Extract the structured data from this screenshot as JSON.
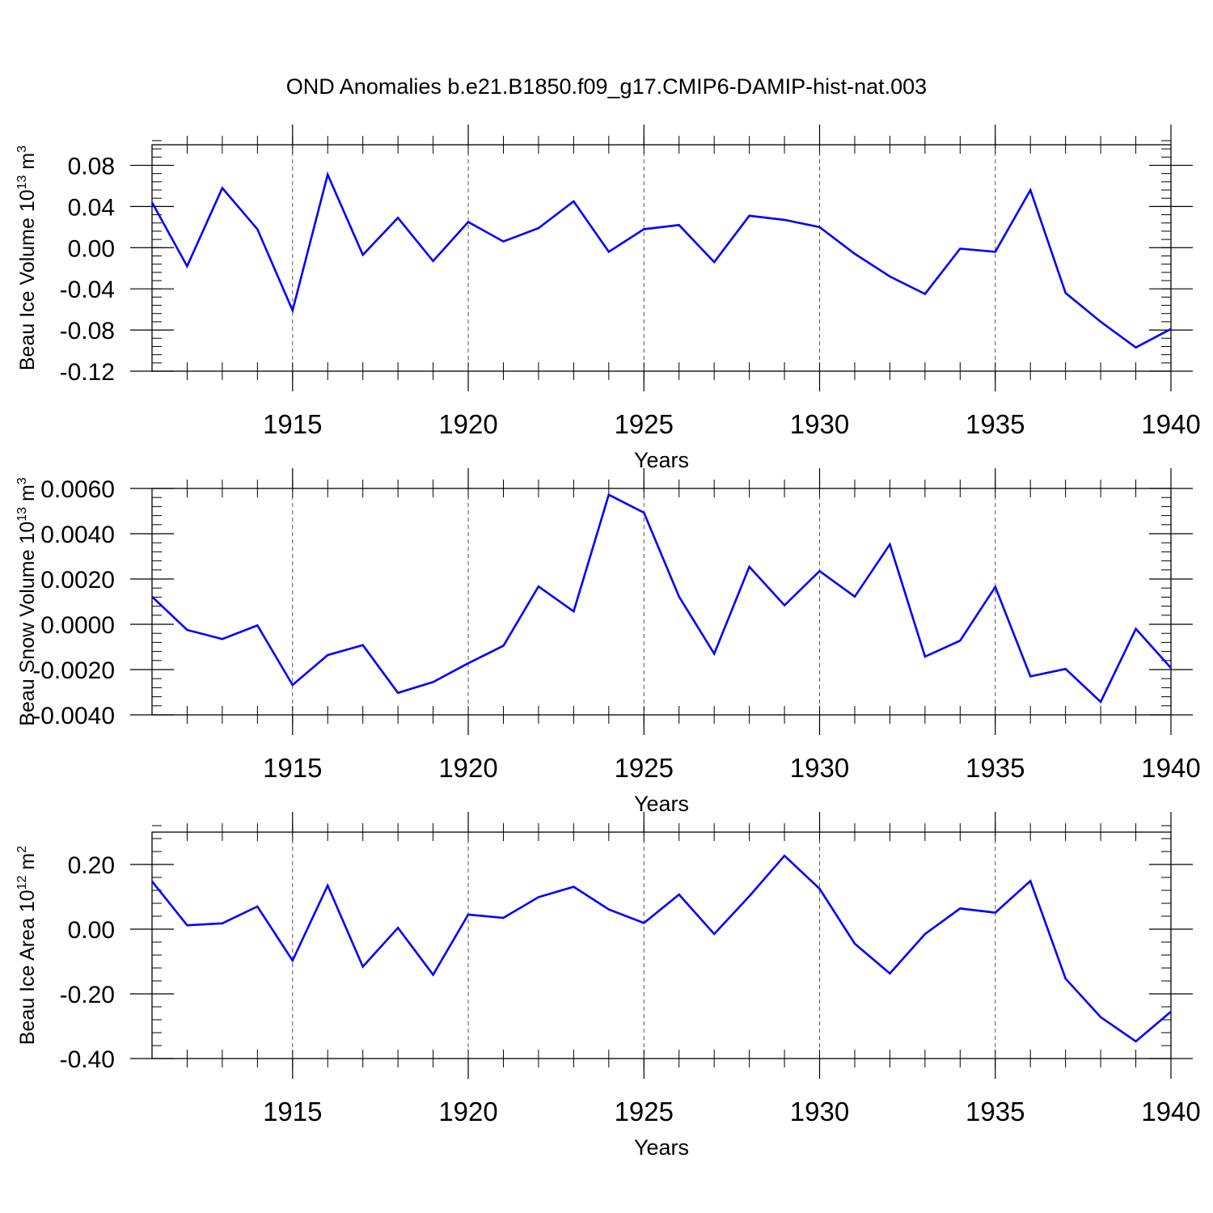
{
  "title": "OND Anomalies b.e21.B1850.f09_g17.CMIP6-DAMIP-hist-nat.003",
  "line_color": "#0000ff",
  "chart_data": [
    {
      "type": "line",
      "ylabel_main": "Beau Ice Volume 10",
      "ylabel_sup": "13",
      "ylabel_unit": " m",
      "ylabel_unit_sup": "3",
      "xlabel": "Years",
      "xlim": [
        1911,
        1940
      ],
      "ylim": [
        -0.12,
        0.1
      ],
      "yticks": [
        0.08,
        0.04,
        0.0,
        -0.04,
        -0.08,
        -0.12
      ],
      "ytick_labels": [
        "0.08",
        "0.04",
        "0.00",
        "-0.04",
        "-0.08",
        "-0.12"
      ],
      "xticks": [
        1915,
        1920,
        1925,
        1930,
        1935,
        1940
      ],
      "xtick_labels": [
        "1915",
        "1920",
        "1925",
        "1930",
        "1935",
        "1940"
      ],
      "x": [
        1911,
        1912,
        1913,
        1914,
        1915,
        1916,
        1917,
        1918,
        1919,
        1920,
        1921,
        1922,
        1923,
        1924,
        1925,
        1926,
        1927,
        1928,
        1929,
        1930,
        1931,
        1932,
        1933,
        1934,
        1935,
        1936,
        1937,
        1938,
        1939,
        1940
      ],
      "values": [
        0.044,
        -0.018,
        0.058,
        0.018,
        -0.061,
        0.071,
        -0.007,
        0.029,
        -0.013,
        0.025,
        0.006,
        0.019,
        0.045,
        -0.004,
        0.018,
        0.022,
        -0.014,
        0.031,
        0.027,
        0.02,
        -0.006,
        -0.028,
        -0.045,
        -0.001,
        -0.004,
        0.056,
        -0.044,
        -0.072,
        -0.097,
        -0.079
      ]
    },
    {
      "type": "line",
      "ylabel_main": "Beau Snow Volume 10",
      "ylabel_sup": "13",
      "ylabel_unit": " m",
      "ylabel_unit_sup": "3",
      "xlabel": "Years",
      "xlim": [
        1911,
        1940
      ],
      "ylim": [
        -0.004,
        0.006
      ],
      "yticks": [
        0.006,
        0.004,
        0.002,
        0.0,
        -0.002,
        -0.004
      ],
      "ytick_labels": [
        "0.0060",
        "0.0040",
        "0.0020",
        "0.0000",
        "-0.0020",
        "-0.0040"
      ],
      "xticks": [
        1915,
        1920,
        1925,
        1930,
        1935,
        1940
      ],
      "xtick_labels": [
        "1915",
        "1920",
        "1925",
        "1930",
        "1935",
        "1940"
      ],
      "x": [
        1911,
        1912,
        1913,
        1914,
        1915,
        1916,
        1917,
        1918,
        1919,
        1920,
        1921,
        1922,
        1923,
        1924,
        1925,
        1926,
        1927,
        1928,
        1929,
        1930,
        1931,
        1932,
        1933,
        1934,
        1935,
        1936,
        1937,
        1938,
        1939,
        1940
      ],
      "values": [
        0.00122,
        -0.00025,
        -0.00065,
        -5e-05,
        -0.00268,
        -0.00136,
        -0.00092,
        -0.00303,
        -0.00255,
        -0.00172,
        -0.00095,
        0.00167,
        0.00057,
        0.00572,
        0.00493,
        0.00122,
        -0.0013,
        0.00254,
        0.00084,
        0.00235,
        0.00122,
        0.00353,
        -0.00143,
        -0.00072,
        0.00165,
        -0.0023,
        -0.00197,
        -0.00343,
        -0.0002,
        -0.00193
      ]
    },
    {
      "type": "line",
      "ylabel_main": "Beau Ice Area 10",
      "ylabel_sup": "12",
      "ylabel_unit": " m",
      "ylabel_unit_sup": "2",
      "xlabel": "Years",
      "xlim": [
        1911,
        1940
      ],
      "ylim": [
        -0.4,
        0.3
      ],
      "yticks": [
        0.2,
        0.0,
        -0.2,
        -0.4
      ],
      "ytick_labels": [
        "0.20",
        "0.00",
        "-0.20",
        "-0.40"
      ],
      "xticks": [
        1915,
        1920,
        1925,
        1930,
        1935,
        1940
      ],
      "xtick_labels": [
        "1915",
        "1920",
        "1925",
        "1930",
        "1935",
        "1940"
      ],
      "x": [
        1911,
        1912,
        1913,
        1914,
        1915,
        1916,
        1917,
        1918,
        1919,
        1920,
        1921,
        1922,
        1923,
        1924,
        1925,
        1926,
        1927,
        1928,
        1929,
        1930,
        1931,
        1932,
        1933,
        1934,
        1935,
        1936,
        1937,
        1938,
        1939,
        1940
      ],
      "values": [
        0.148,
        0.012,
        0.018,
        0.07,
        -0.097,
        0.135,
        -0.116,
        0.004,
        -0.141,
        0.045,
        0.035,
        0.099,
        0.131,
        0.061,
        0.019,
        0.107,
        -0.015,
        0.102,
        0.227,
        0.125,
        -0.045,
        -0.137,
        -0.015,
        0.064,
        0.051,
        0.149,
        -0.153,
        -0.272,
        -0.347,
        -0.255
      ]
    }
  ]
}
